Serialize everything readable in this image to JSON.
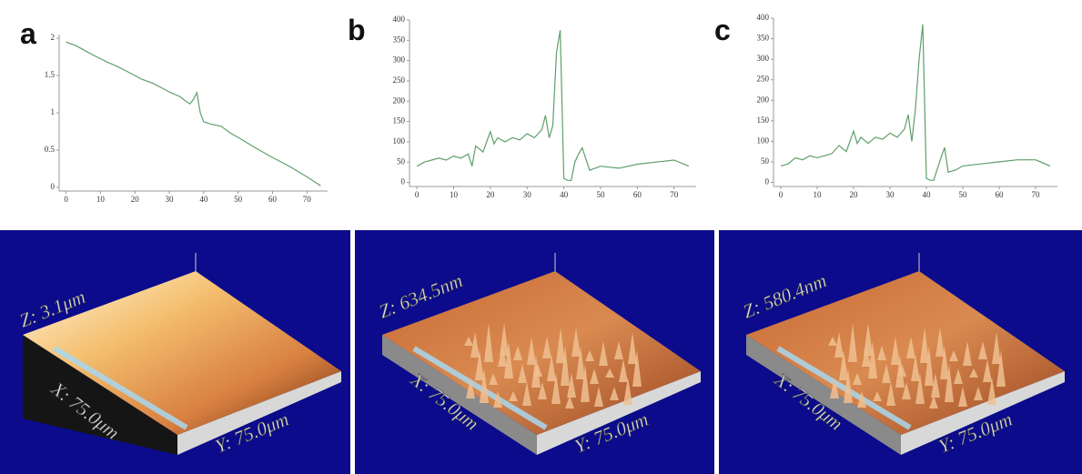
{
  "chart_data": [
    {
      "type": "line",
      "title": "a",
      "x": [
        0,
        3,
        6,
        9,
        12,
        15,
        18,
        20,
        22,
        25,
        28,
        30,
        33,
        35,
        36,
        37,
        38,
        39,
        40,
        42,
        45,
        48,
        50,
        55,
        60,
        65,
        70,
        74
      ],
      "values": [
        1.95,
        1.9,
        1.82,
        1.75,
        1.68,
        1.62,
        1.55,
        1.5,
        1.45,
        1.4,
        1.33,
        1.28,
        1.22,
        1.15,
        1.12,
        1.18,
        1.27,
        1.0,
        0.88,
        0.85,
        0.82,
        0.72,
        0.67,
        0.53,
        0.4,
        0.28,
        0.14,
        0.02
      ],
      "color": "#5f9f6a",
      "xlim": [
        -2,
        76
      ],
      "ylim": [
        -0.05,
        2.05
      ],
      "xticks": [
        0,
        10,
        20,
        30,
        40,
        50,
        60,
        70
      ],
      "yticks": [
        0,
        0.5,
        1,
        1.5,
        2
      ]
    },
    {
      "type": "line",
      "title": "b",
      "x": [
        0,
        2,
        4,
        6,
        8,
        10,
        12,
        14,
        15,
        16,
        18,
        20,
        21,
        22,
        24,
        26,
        28,
        30,
        32,
        34,
        35,
        36,
        37,
        38,
        39,
        40,
        41,
        42,
        43,
        44,
        45,
        47,
        50,
        55,
        60,
        65,
        70,
        74
      ],
      "values": [
        40,
        50,
        55,
        60,
        55,
        65,
        60,
        70,
        40,
        90,
        75,
        125,
        95,
        110,
        100,
        110,
        105,
        120,
        110,
        130,
        165,
        110,
        140,
        320,
        375,
        10,
        5,
        5,
        50,
        70,
        85,
        30,
        40,
        35,
        45,
        50,
        55,
        40
      ],
      "color": "#5f9f6a",
      "xlim": [
        -2,
        76
      ],
      "ylim": [
        -10,
        400
      ],
      "xticks": [
        0,
        10,
        20,
        30,
        40,
        50,
        60,
        70
      ],
      "yticks": [
        0,
        50,
        100,
        150,
        200,
        250,
        300,
        350,
        400
      ]
    },
    {
      "type": "line",
      "title": "c",
      "x": [
        0,
        2,
        4,
        6,
        8,
        10,
        12,
        14,
        16,
        18,
        20,
        21,
        22,
        24,
        26,
        28,
        30,
        32,
        34,
        35,
        36,
        37,
        38,
        39,
        40,
        41,
        42,
        44,
        45,
        46,
        48,
        50,
        55,
        60,
        65,
        70,
        74
      ],
      "values": [
        40,
        45,
        60,
        55,
        65,
        60,
        65,
        70,
        90,
        75,
        125,
        95,
        110,
        95,
        110,
        105,
        120,
        110,
        130,
        165,
        100,
        180,
        300,
        385,
        10,
        5,
        5,
        60,
        85,
        25,
        30,
        40,
        45,
        50,
        55,
        55,
        40
      ],
      "color": "#5f9f6a",
      "xlim": [
        -2,
        76
      ],
      "ylim": [
        -10,
        400
      ],
      "xticks": [
        0,
        10,
        20,
        30,
        40,
        50,
        60,
        70
      ],
      "yticks": [
        0,
        50,
        100,
        150,
        200,
        250,
        300,
        350,
        400
      ]
    }
  ],
  "afm_images": [
    {
      "z_label": "Z: 3.1μm",
      "x_label": "X: 75.0μm",
      "y_label": "Y: 75.0μm"
    },
    {
      "z_label": "Z: 634.5nm",
      "x_label": "X: 75.0μm",
      "y_label": "Y: 75.0μm"
    },
    {
      "z_label": "Z: 580.4nm",
      "x_label": "X: 75.0μm",
      "y_label": "Y: 75.0μm"
    }
  ]
}
